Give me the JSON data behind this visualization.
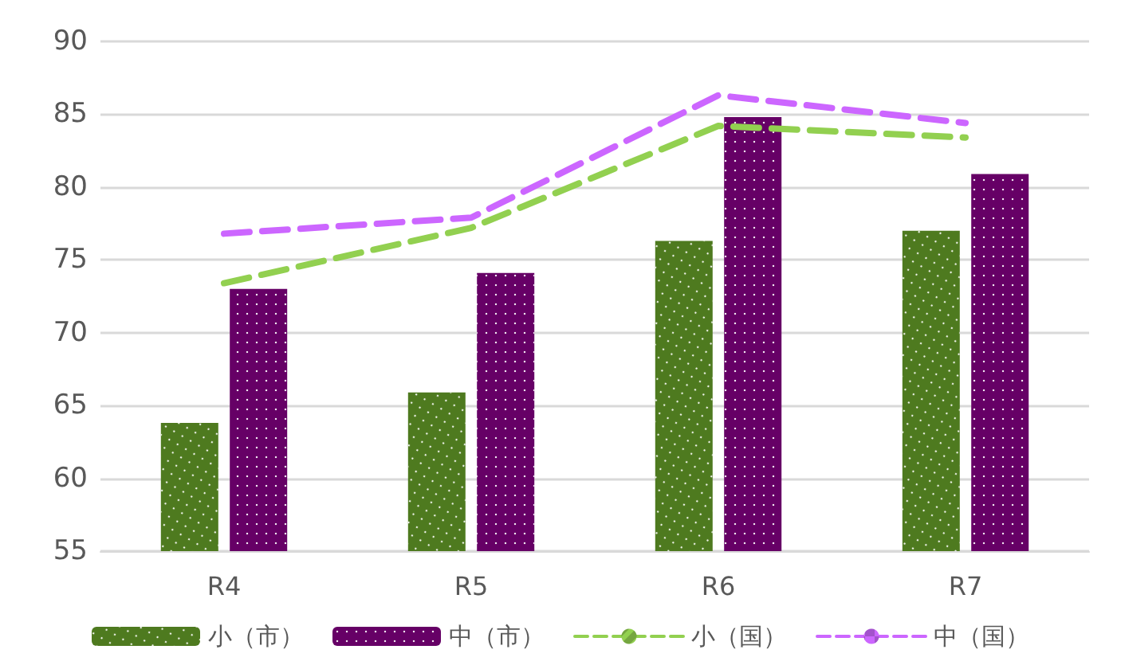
{
  "chart_data": {
    "type": "bar",
    "categories": [
      "R4",
      "R5",
      "R6",
      "R7"
    ],
    "series": [
      {
        "name": "小（市）",
        "color": "#4e7a1f",
        "values": [
          63.8,
          65.9,
          76.3,
          77.0
        ]
      },
      {
        "name": "中（市）",
        "color": "#660066",
        "values": [
          73.0,
          74.1,
          84.8,
          80.9
        ]
      },
      {
        "name": "小（国）",
        "type": "line",
        "color": "#92d050",
        "values": [
          73.4,
          77.2,
          84.2,
          83.4
        ]
      },
      {
        "name": "中（国）",
        "type": "line",
        "color": "#cc66ff",
        "values": [
          76.8,
          77.9,
          86.3,
          84.4
        ]
      }
    ],
    "ylim": [
      55,
      90
    ],
    "yticks": [
      55,
      60,
      65,
      70,
      75,
      80,
      85,
      90
    ],
    "grid": "y",
    "legend": "bottom",
    "line_style": "dashed",
    "marker": "none"
  }
}
